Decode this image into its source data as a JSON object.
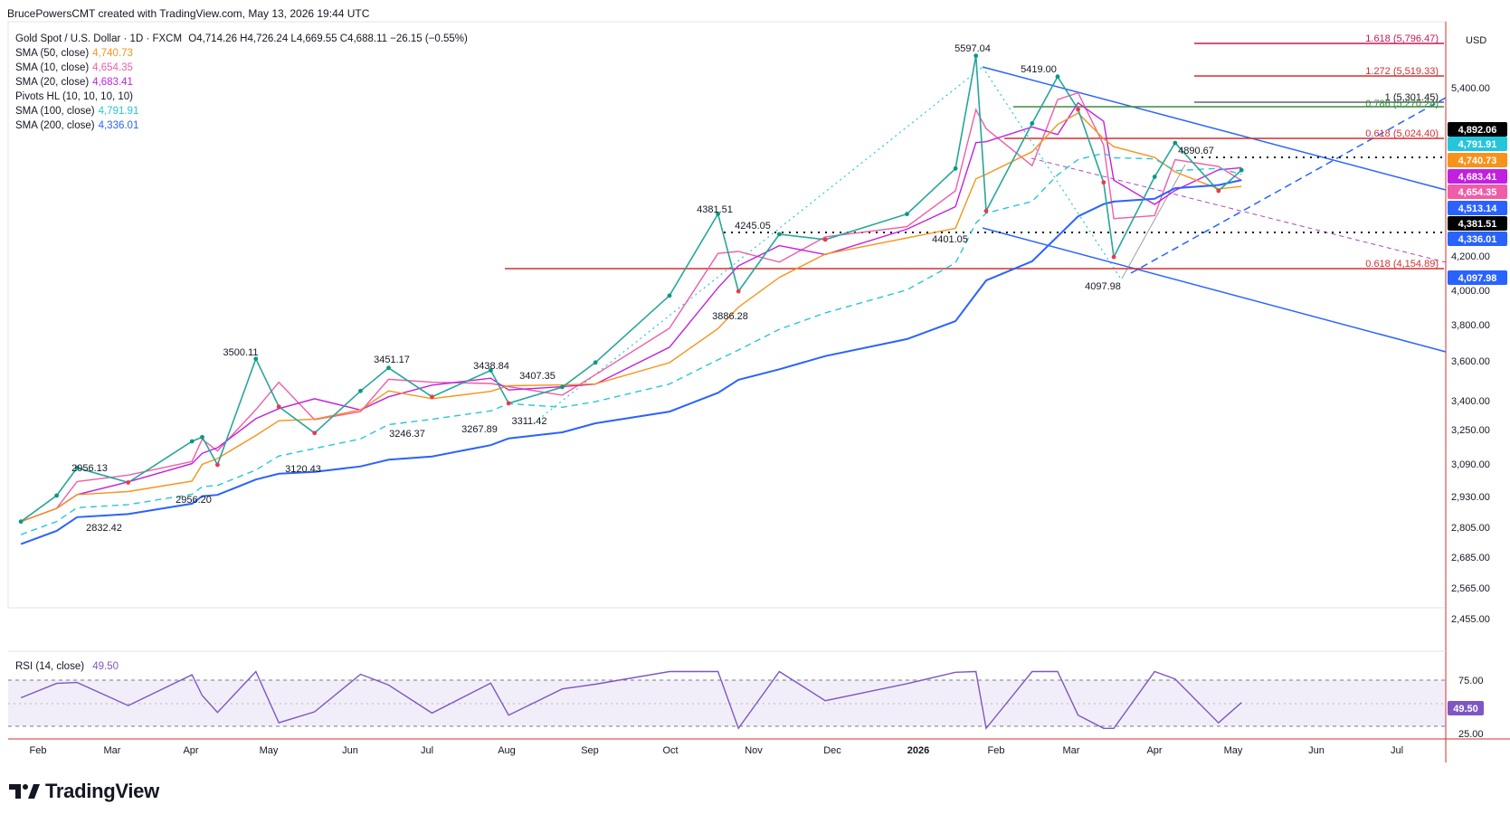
{
  "header": {
    "text": "BrucePowersCMT created with TradingView.com, May 13, 2026 19:44 UTC"
  },
  "brand": {
    "name": "TradingView"
  },
  "symbol": {
    "title": "Gold Spot / U.S. Dollar · 1D · FXCM",
    "ohlc": "O4,714.26  H4,726.24  L4,669.55  C4,688.11  −26.15 (−0.55%)"
  },
  "indicators": [
    {
      "label": "SMA (50, close)",
      "value": "4,740.73",
      "color": "#f7931a"
    },
    {
      "label": "SMA (10, close)",
      "value": "4,654.35",
      "color": "#ef5da8"
    },
    {
      "label": "SMA (20, close)",
      "value": "4,683.41",
      "color": "#c21fe0"
    },
    {
      "label": "Pivots HL (10, 10, 10, 10)",
      "value": "",
      "color": "#131722"
    },
    {
      "label": "SMA (100, close)",
      "value": "4,791.91",
      "color": "#26c6da"
    },
    {
      "label": "SMA (200, close)",
      "value": "4,336.01",
      "color": "#2962ff"
    }
  ],
  "rsi": {
    "label": "RSI (14, close)",
    "value": "49.50",
    "color": "#7e57c2",
    "levels": [
      "75.00",
      "25.00"
    ]
  },
  "axis": {
    "currency": "USD",
    "price_ticks": [
      "5,400.00",
      "4,200.00",
      "4,000.00",
      "3,800.00",
      "3,600.00",
      "3,400.00",
      "3,250.00",
      "3,090.00",
      "2,930.00",
      "2,805.00",
      "2,685.00",
      "2,565.00",
      "2,455.00"
    ],
    "month_labels": [
      "Feb",
      "Mar",
      "Apr",
      "May",
      "Jun",
      "Jul",
      "Aug",
      "Sep",
      "Oct",
      "Nov",
      "Dec",
      "2026",
      "Feb",
      "Mar",
      "Apr",
      "May",
      "Jun",
      "Jul"
    ]
  },
  "price_badges": [
    {
      "text": "4,892.06",
      "bg": "#000000"
    },
    {
      "text": "4,791.91",
      "bg": "#26c6da"
    },
    {
      "text": "4,740.73",
      "bg": "#f7931a"
    },
    {
      "text": "4,683.41",
      "bg": "#c21fe0"
    },
    {
      "text": "4,654.35",
      "bg": "#ef5da8"
    },
    {
      "text": "4,513.14",
      "bg": "#2962ff"
    },
    {
      "text": "4,381.51",
      "bg": "#000000"
    },
    {
      "text": "4,336.01",
      "bg": "#2962ff"
    },
    {
      "text": "4,097.98",
      "bg": "#2962ff"
    }
  ],
  "fib_labels": [
    {
      "text": "1.618 (5,796.47)",
      "color": "#c2185b"
    },
    {
      "text": "1.272 (5,519.33)",
      "color": "#d32f2f"
    },
    {
      "text": "1 (5,301.45)",
      "color": "#131722"
    },
    {
      "text": "0.786 (5,270.24)",
      "color": "#388e3c"
    },
    {
      "text": "0.618 (5,024.40)",
      "color": "#d32f2f"
    },
    {
      "text": "0.618 (4,154.89)",
      "color": "#d32f2f"
    }
  ],
  "pivot_labels": [
    "5597.04",
    "5419.00",
    "4890.67",
    "4381.51",
    "4245.05",
    "4401.05",
    "4097.98",
    "3886.28",
    "3500.11",
    "3451.17",
    "3438.84",
    "3407.35",
    "2956.13",
    "2956.20",
    "2832.42",
    "3120.43",
    "3246.37",
    "3267.89",
    "3311.42"
  ],
  "chart_data": {
    "type": "line",
    "title": "Gold Spot / U.S. Dollar · 1D · FXCM",
    "y_unit": "USD",
    "ylim": [
      2380,
      5900
    ],
    "x": [
      "2025-01-20",
      "2025-02-03",
      "2025-02-11",
      "2025-03-03",
      "2025-03-28",
      "2025-04-01",
      "2025-04-07",
      "2025-04-22",
      "2025-05-01",
      "2025-05-15",
      "2025-06-02",
      "2025-06-13",
      "2025-06-30",
      "2025-07-23",
      "2025-07-30",
      "2025-08-20",
      "2025-09-02",
      "2025-10-01",
      "2025-10-20",
      "2025-10-28",
      "2025-11-13",
      "2025-12-01",
      "2026-01-02",
      "2026-01-21",
      "2026-01-29",
      "2026-02-02",
      "2026-02-20",
      "2026-03-02",
      "2026-03-10",
      "2026-03-20",
      "2026-03-24",
      "2026-04-09",
      "2026-04-17",
      "2026-05-04",
      "2026-05-13"
    ],
    "series": [
      {
        "name": "Gold Spot / U.S. Dollar",
        "values": [
          2720,
          2832,
          2956,
          2890,
          3080,
          3100,
          2970,
          3500,
          3250,
          3120,
          3330,
          3451,
          3300,
          3438,
          3267,
          3350,
          3480,
          3860,
          4381,
          3886,
          4245,
          4210,
          4380,
          4700,
          5597,
          4401,
          5040,
          5419,
          5150,
          4600,
          4098,
          4640,
          4890,
          4540,
          4688
        ]
      }
    ],
    "levels": [
      {
        "name": "1.618",
        "value": 5796.47
      },
      {
        "name": "1.272",
        "value": 5519.33
      },
      {
        "name": "1",
        "value": 5301.45
      },
      {
        "name": "0.786",
        "value": 5270.24
      },
      {
        "name": "0.618",
        "value": 5024.4
      },
      {
        "name": "0.618",
        "value": 4154.89
      }
    ],
    "rsi": {
      "label": "RSI (14, close)",
      "last": 49.5,
      "levels": [
        75,
        25
      ]
    }
  }
}
